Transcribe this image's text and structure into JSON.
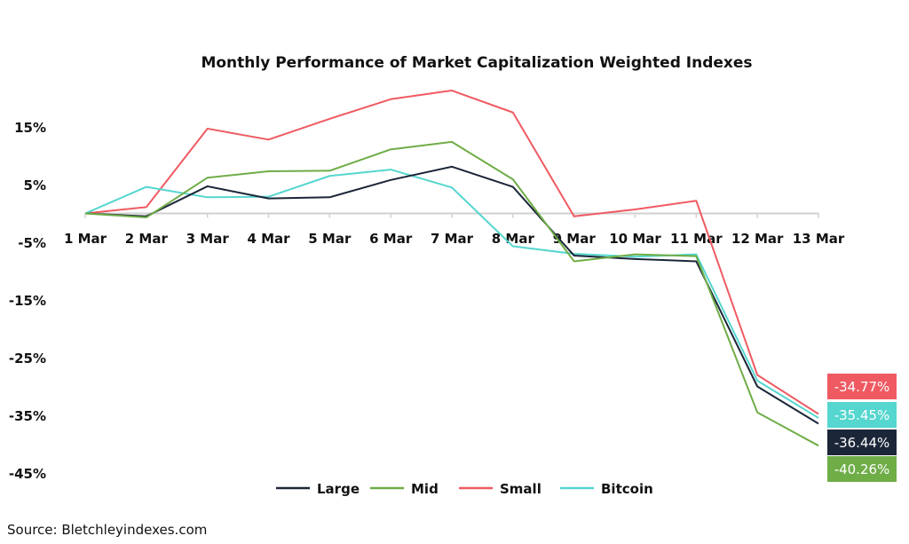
{
  "chart_data": {
    "type": "line",
    "title": "Monthly Performance of Market Capitalization Weighted Indexes",
    "categories": [
      "1 Mar",
      "2 Mar",
      "3 Mar",
      "4 Mar",
      "5 Mar",
      "6 Mar",
      "7 Mar",
      "8 Mar",
      "9 Mar",
      "10 Mar",
      "11 Mar",
      "12 Mar",
      "13 Mar"
    ],
    "y_ticks": [
      "15%",
      "5%",
      "-5%",
      "-15%",
      "-25%",
      "-35%",
      "-45%"
    ],
    "y_tick_values": [
      15,
      5,
      -5,
      -15,
      -25,
      -35,
      -45
    ],
    "ylim": [
      -45,
      22
    ],
    "grid": false,
    "legend_position": "bottom",
    "series": [
      {
        "name": "Large",
        "color": "#1b2638",
        "values": [
          0,
          -0.5,
          4.7,
          2.6,
          2.8,
          5.8,
          8.1,
          4.6,
          -7.3,
          -7.9,
          -8.3,
          -30.0,
          -36.44
        ],
        "end_label": "-36.44%"
      },
      {
        "name": "Mid",
        "color": "#6fad47",
        "values": [
          0,
          -0.7,
          6.2,
          7.3,
          7.4,
          11.1,
          12.4,
          5.9,
          -8.3,
          -7.1,
          -7.4,
          -34.5,
          -40.26
        ],
        "end_label": "-40.26%"
      },
      {
        "name": "Small",
        "color": "#ef5a62",
        "values": [
          0,
          1.1,
          14.7,
          12.8,
          16.4,
          19.8,
          21.3,
          17.5,
          -0.5,
          0.7,
          2.2,
          -28.0,
          -34.77
        ],
        "end_label": "-34.77%"
      },
      {
        "name": "Bitcoin",
        "color": "#55d6cf",
        "values": [
          0,
          4.6,
          2.8,
          2.9,
          6.5,
          7.6,
          4.5,
          -5.7,
          -7.0,
          -7.5,
          -7.1,
          -29.0,
          -35.45
        ],
        "end_label": "-35.45%"
      }
    ]
  },
  "source": "Source: Bletchleyindexes.com"
}
